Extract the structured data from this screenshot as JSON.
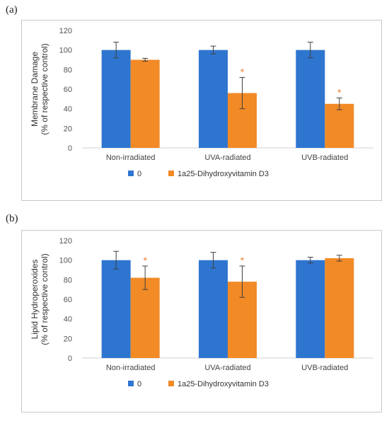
{
  "panels": [
    {
      "label": "(a)",
      "chart_data": {
        "type": "bar",
        "ylabel_lines": [
          "Membrane Damage",
          "(% of respective control)"
        ],
        "ylim": [
          0,
          120
        ],
        "yticks": [
          0,
          20,
          40,
          60,
          80,
          100,
          120
        ],
        "categories": [
          "Non-irradiated",
          "UVA-radiated",
          "UVB-radiated"
        ],
        "series": [
          {
            "name": "0",
            "color": "#2E75D0",
            "values": [
              100,
              100,
              100
            ],
            "errors": [
              8,
              4,
              8
            ],
            "stars": [
              "",
              "",
              ""
            ]
          },
          {
            "name": "1a25-Dihydroxyvitamin D3",
            "color": "#F28A26",
            "values": [
              90,
              56,
              45
            ],
            "errors": [
              1.5,
              16,
              6
            ],
            "stars": [
              "",
              "*",
              "*"
            ]
          }
        ],
        "grid": false,
        "legend": "bottom"
      }
    },
    {
      "label": "(b)",
      "chart_data": {
        "type": "bar",
        "ylabel_lines": [
          "Lipid Hydroperoxides",
          "(% of respective control)"
        ],
        "ylim": [
          0,
          120
        ],
        "yticks": [
          0,
          20,
          40,
          60,
          80,
          100,
          120
        ],
        "categories": [
          "Non-irradiated",
          "UVA-radiated",
          "UVB-radiated"
        ],
        "series": [
          {
            "name": "0",
            "color": "#2E75D0",
            "values": [
              100,
              100,
              100
            ],
            "errors": [
              9,
              8,
              3
            ],
            "stars": [
              "",
              "",
              ""
            ]
          },
          {
            "name": "1a25-Dihydroxyvitamin D3",
            "color": "#F28A26",
            "values": [
              82,
              78,
              102
            ],
            "errors": [
              12,
              16,
              3
            ],
            "stars": [
              "*",
              "*",
              ""
            ]
          }
        ],
        "grid": false,
        "legend": "bottom"
      }
    }
  ]
}
